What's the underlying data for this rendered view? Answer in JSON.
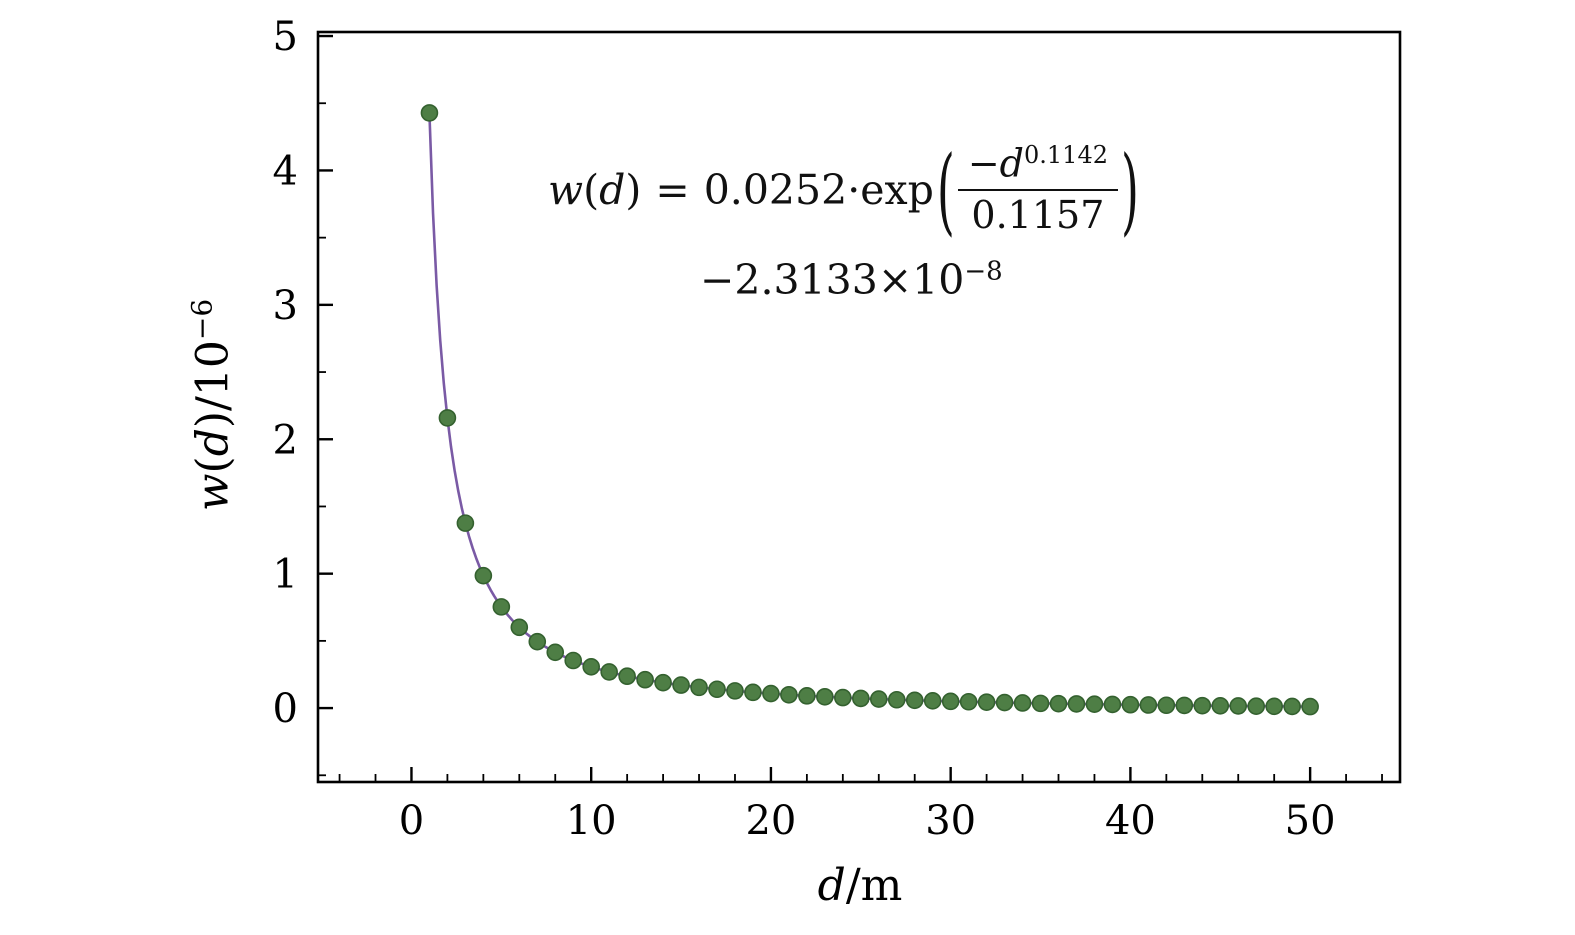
{
  "chart_data": {
    "type": "scatter",
    "title": "",
    "xlabel": "d/m",
    "ylabel": "w(d)/10^-6",
    "xlim": [
      -5.2,
      55.0
    ],
    "ylim": [
      -0.55,
      5.03
    ],
    "x_major_ticks": [
      0,
      10,
      20,
      30,
      40,
      50
    ],
    "x_minor_step": 2,
    "y_major_ticks": [
      0,
      1,
      2,
      3,
      4,
      5
    ],
    "y_minor_step": 0.5,
    "grid": false,
    "legend": null,
    "x": [
      1,
      2,
      3,
      4,
      5,
      6,
      7,
      8,
      9,
      10,
      11,
      12,
      13,
      14,
      15,
      16,
      17,
      18,
      19,
      20,
      21,
      22,
      23,
      24,
      25,
      26,
      27,
      28,
      29,
      30,
      31,
      32,
      33,
      34,
      35,
      36,
      37,
      38,
      39,
      40,
      41,
      42,
      43,
      44,
      45,
      46,
      47,
      48,
      49,
      50
    ],
    "y": [
      4.428,
      2.159,
      1.376,
      0.985,
      0.753,
      0.601,
      0.494,
      0.415,
      0.354,
      0.307,
      0.269,
      0.237,
      0.211,
      0.189,
      0.171,
      0.154,
      0.14,
      0.128,
      0.117,
      0.108,
      0.099,
      0.091,
      0.084,
      0.078,
      0.072,
      0.067,
      0.062,
      0.058,
      0.054,
      0.05,
      0.047,
      0.044,
      0.041,
      0.038,
      0.035,
      0.033,
      0.031,
      0.029,
      0.027,
      0.025,
      0.023,
      0.021,
      0.02,
      0.018,
      0.017,
      0.016,
      0.014,
      0.013,
      0.012,
      0.011
    ],
    "fit": {
      "a": 0.0252,
      "p": 0.1142,
      "b": 0.1157,
      "c_times_1e8": 2.3133,
      "unit_scale": 1e-06
    },
    "colors": {
      "line": "#7a5aa5",
      "marker_fill": "#4e7e45",
      "marker_edge": "#34612f",
      "frame": "#000000",
      "text": "#000000"
    }
  },
  "annotation": {
    "w": "w",
    "open": "(",
    "d": "d",
    "close": ")",
    "equals": "=",
    "coef": "0.0252",
    "dot": "·",
    "exp": "exp",
    "lparen": "(",
    "rparen": ")",
    "num_minus": "−",
    "num_var": "d",
    "num_sup": "0.1142",
    "den": "0.1157",
    "line2_main": "−2.3133×10",
    "line2_sup": "−8"
  },
  "axis": {
    "xlabel_var": "d",
    "xlabel_unit": "/m",
    "ylabel_w": "w",
    "ylabel_open": "(",
    "ylabel_d": "d",
    "ylabel_close": ")",
    "ylabel_unit": "/10",
    "ylabel_sup": "−6"
  }
}
